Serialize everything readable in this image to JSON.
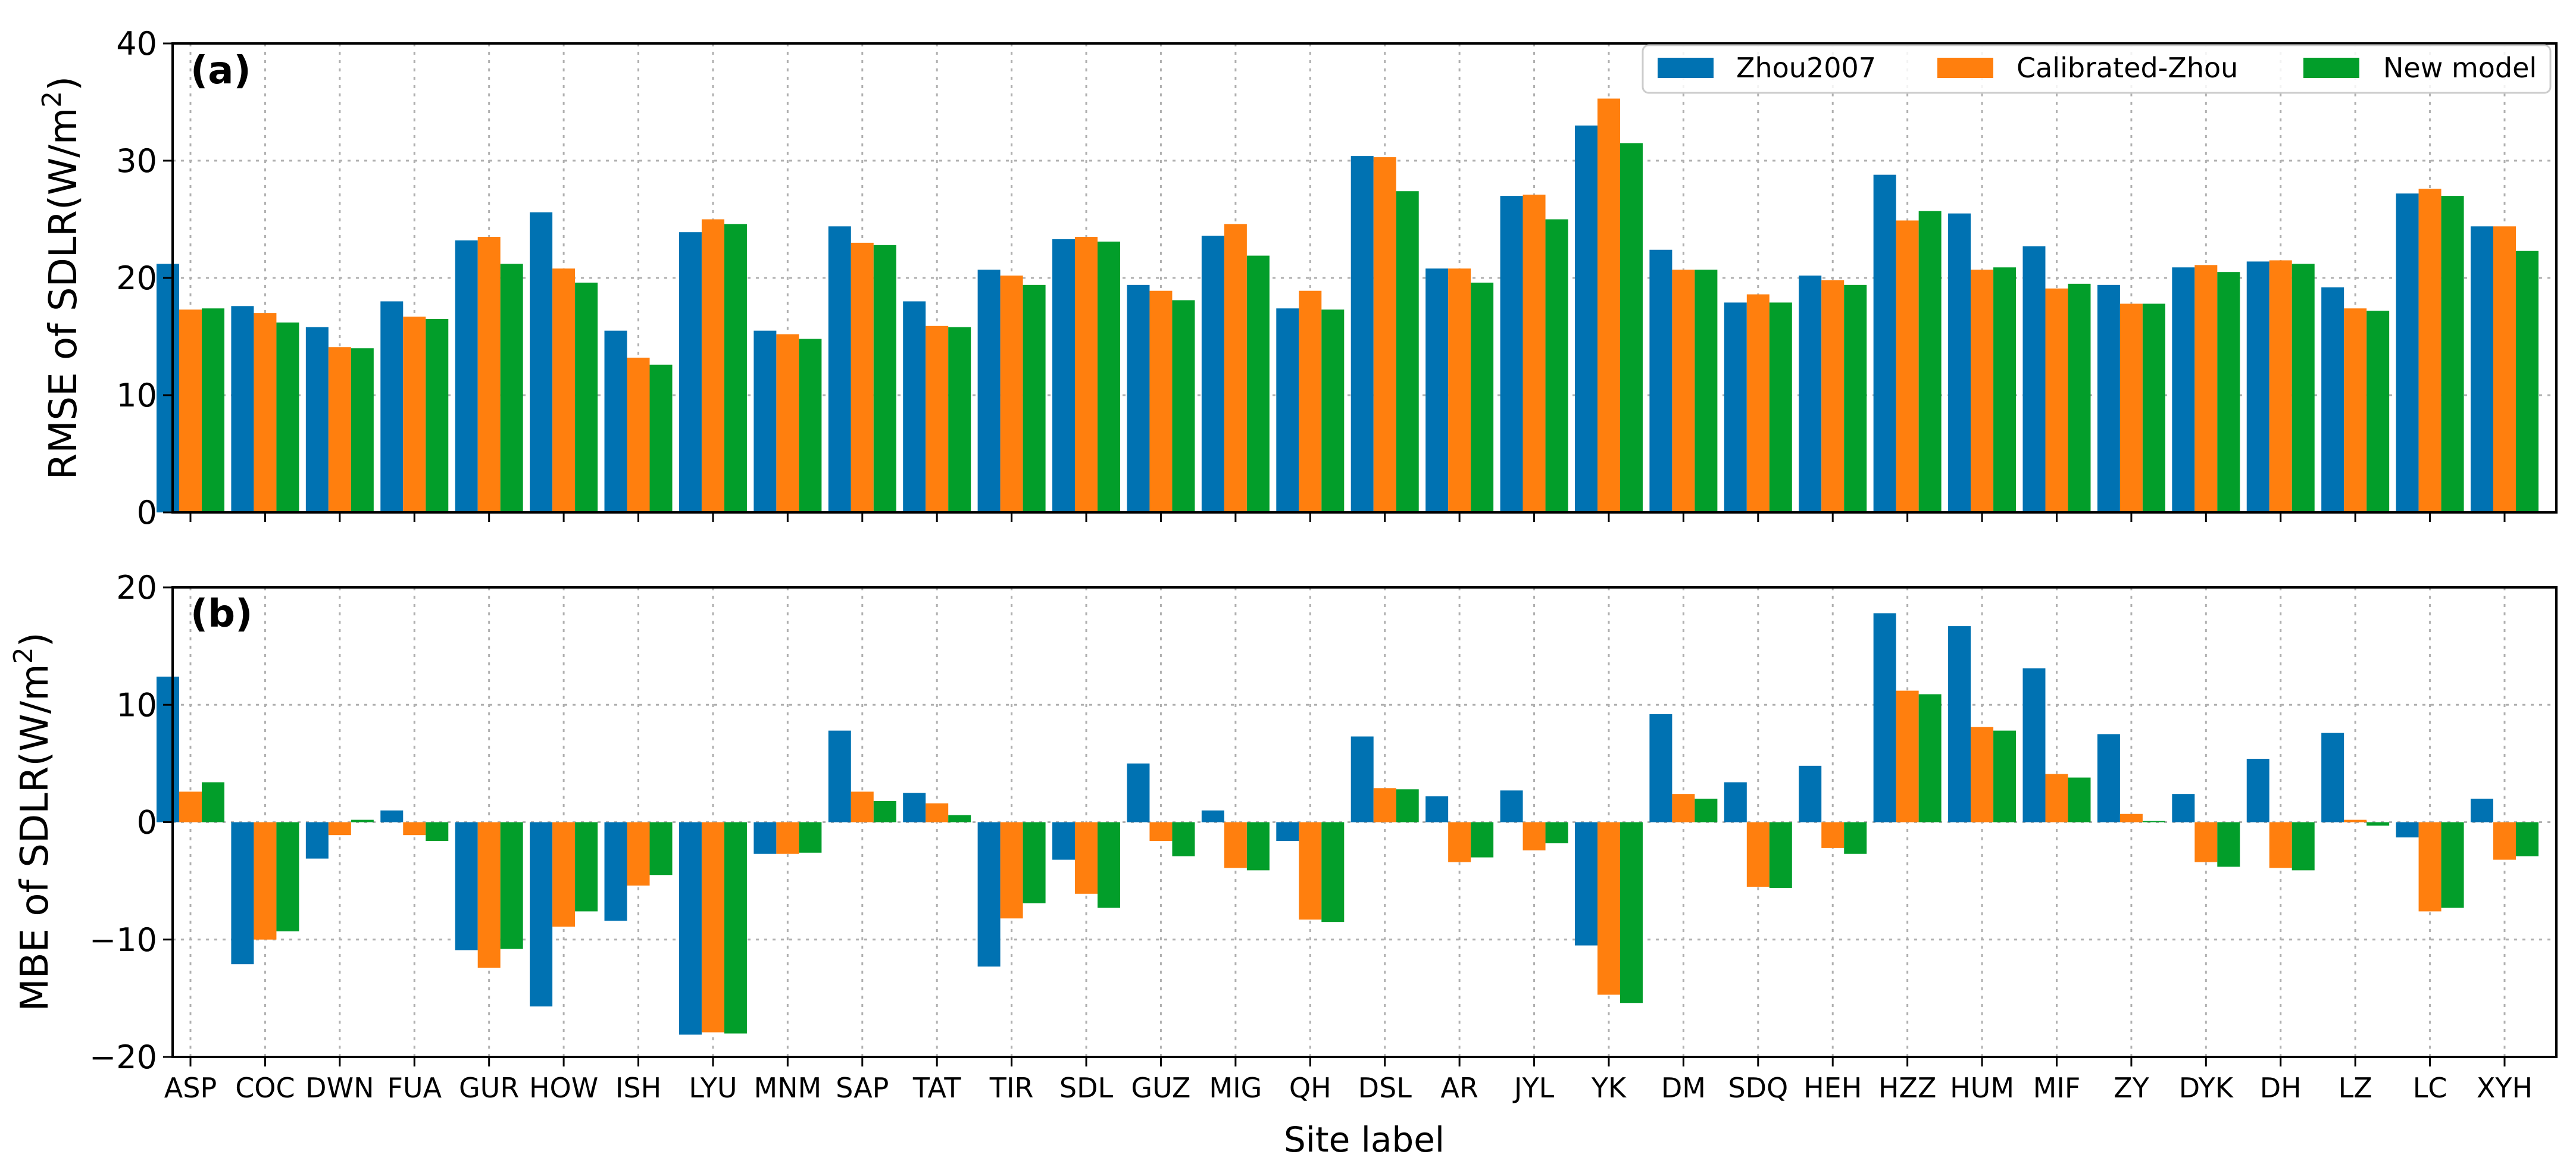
{
  "chart_data": [
    {
      "type": "bar",
      "panel": "(a)",
      "ylabel": "RMSE of SDLR(W/m²)",
      "ylabel_parts": {
        "base": "RMSE of SDLR(W/m",
        "sup": "2",
        "end": ")"
      },
      "ylim": [
        0,
        40
      ],
      "yticks": [
        0,
        10,
        20,
        30,
        40
      ],
      "grid": true,
      "legend": "top-right",
      "series": [
        {
          "name": "Zhou2007",
          "color": "#0072b2",
          "values": [
            21.2,
            17.6,
            15.8,
            18.0,
            23.2,
            25.6,
            15.5,
            23.9,
            15.5,
            24.4,
            18.0,
            20.7,
            23.3,
            19.4,
            23.6,
            17.4,
            30.4,
            20.8,
            27.0,
            33.0,
            22.4,
            17.9,
            20.2,
            28.8,
            25.5,
            22.7,
            19.4,
            20.9,
            21.4,
            19.2,
            27.2,
            24.4
          ]
        },
        {
          "name": "Calibrated-Zhou",
          "color": "#ff7f0e",
          "values": [
            17.3,
            17.0,
            14.1,
            16.7,
            23.5,
            20.8,
            13.2,
            25.0,
            15.2,
            23.0,
            15.9,
            20.2,
            23.5,
            18.9,
            24.6,
            18.9,
            30.3,
            20.8,
            27.1,
            35.3,
            20.7,
            18.6,
            19.8,
            24.9,
            20.7,
            19.1,
            17.8,
            21.1,
            21.5,
            17.4,
            27.6,
            24.4
          ]
        },
        {
          "name": "New model",
          "color": "#029e2a",
          "values": [
            17.4,
            16.2,
            14.0,
            16.5,
            21.2,
            19.6,
            12.6,
            24.6,
            14.8,
            22.8,
            15.8,
            19.4,
            23.1,
            18.1,
            21.9,
            17.3,
            27.4,
            19.6,
            25.0,
            31.5,
            20.7,
            17.9,
            19.4,
            25.7,
            20.9,
            19.5,
            17.8,
            20.5,
            21.2,
            17.2,
            27.0,
            22.3
          ]
        }
      ]
    },
    {
      "type": "bar",
      "panel": "(b)",
      "ylabel": "MBE of SDLR(W/m²)",
      "ylabel_parts": {
        "base": "MBE of SDLR(W/m",
        "sup": "2",
        "end": ")"
      },
      "xlabel": "Site label",
      "ylim": [
        -20,
        20
      ],
      "yticks": [
        -20,
        -10,
        0,
        10,
        20
      ],
      "grid": true,
      "series": [
        {
          "name": "Zhou2007",
          "color": "#0072b2",
          "values": [
            12.4,
            -12.1,
            -3.1,
            1.0,
            -10.9,
            -15.7,
            -8.4,
            -18.1,
            -2.7,
            7.8,
            2.5,
            -12.3,
            -3.2,
            5.0,
            1.0,
            -1.6,
            7.3,
            2.2,
            2.7,
            -10.5,
            9.2,
            3.4,
            4.8,
            17.8,
            16.7,
            13.1,
            7.5,
            2.4,
            5.4,
            7.6,
            -1.3,
            2.0
          ]
        },
        {
          "name": "Calibrated-Zhou",
          "color": "#ff7f0e",
          "values": [
            2.6,
            -10.0,
            -1.1,
            -1.1,
            -12.4,
            -8.9,
            -5.4,
            -17.9,
            -2.7,
            2.6,
            1.6,
            -8.2,
            -6.1,
            -1.6,
            -3.9,
            -8.3,
            2.9,
            -3.4,
            -2.4,
            -14.7,
            2.4,
            -5.5,
            -2.2,
            11.2,
            8.1,
            4.1,
            0.7,
            -3.4,
            -3.9,
            0.2,
            -7.6,
            -3.2
          ]
        },
        {
          "name": "New model",
          "color": "#029e2a",
          "values": [
            3.4,
            -9.3,
            0.2,
            -1.6,
            -10.8,
            -7.6,
            -4.5,
            -18.0,
            -2.6,
            1.8,
            0.6,
            -6.9,
            -7.3,
            -2.9,
            -4.1,
            -8.5,
            2.8,
            -3.0,
            -1.8,
            -15.4,
            2.0,
            -5.6,
            -2.7,
            10.9,
            7.8,
            3.8,
            0.1,
            -3.8,
            -4.1,
            -0.3,
            -7.3,
            -2.9
          ]
        }
      ]
    }
  ],
  "categories": [
    "ASP",
    "COC",
    "DWN",
    "FUA",
    "GUR",
    "HOW",
    "ISH",
    "LYU",
    "MNM",
    "SAP",
    "TAT",
    "TIR",
    "SDL",
    "GUZ",
    "MIG",
    "QH",
    "DSL",
    "AR",
    "JYL",
    "YK",
    "DM",
    "SDQ",
    "HEH",
    "HZZ",
    "HUM",
    "MIF",
    "ZY",
    "DYK",
    "DH",
    "LZ",
    "LC",
    "XYH"
  ]
}
